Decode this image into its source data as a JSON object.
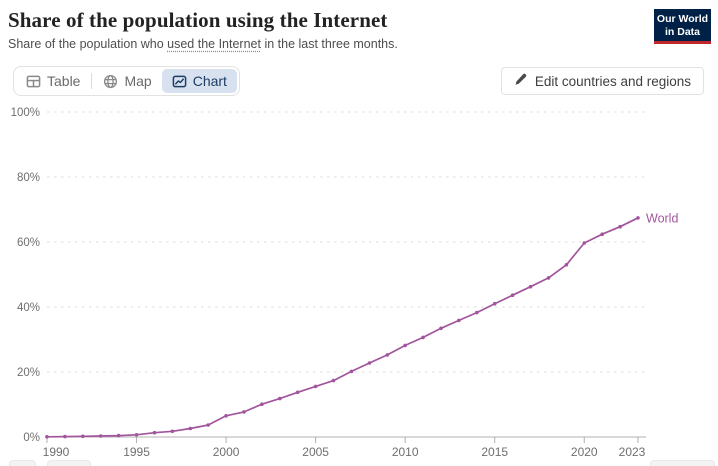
{
  "header": {
    "title": "Share of the population using the Internet",
    "subtitle": {
      "prefix": "Share of the population who ",
      "link": "used the Internet",
      "suffix": " in the last three months."
    },
    "logo": {
      "line1": "Our World",
      "line2": "in Data"
    }
  },
  "toolbar": {
    "tabs": [
      {
        "label": "Table",
        "icon": "table-icon",
        "active": false
      },
      {
        "label": "Map",
        "icon": "globe-icon",
        "active": false
      },
      {
        "label": "Chart",
        "icon": "line-chart-icon",
        "active": true
      }
    ],
    "edit_button": "Edit countries and regions"
  },
  "colors": {
    "line": "#a2559c",
    "tab_active_bg": "#d7e1f0",
    "tab_active_text": "#1d3d63",
    "logo_bg": "#002147",
    "logo_stripe": "#c0272d",
    "gridline": "#dcdcdc",
    "axis_line": "#b0b0b0",
    "tick_label": "#6f6f6f"
  },
  "chart_data": {
    "type": "line",
    "title": "Share of the population using the Internet",
    "subtitle": "Share of the population who used the Internet in the last three months.",
    "xlim": [
      1990,
      2023
    ],
    "ylim": [
      0,
      100
    ],
    "x_ticks": [
      1990,
      1995,
      2000,
      2005,
      2010,
      2015,
      2020,
      2023
    ],
    "y_ticks": [
      0,
      20,
      40,
      60,
      80,
      100
    ],
    "y_tick_suffix": "%",
    "grid": "horizontal-dashed",
    "legend_position": "end-of-line",
    "series": [
      {
        "name": "World",
        "color": "#a2559c",
        "x": [
          1990,
          1991,
          1992,
          1993,
          1994,
          1995,
          1996,
          1997,
          1998,
          1999,
          2000,
          2001,
          2002,
          2003,
          2004,
          2005,
          2006,
          2007,
          2008,
          2009,
          2010,
          2011,
          2012,
          2013,
          2014,
          2015,
          2016,
          2017,
          2018,
          2019,
          2020,
          2021,
          2022,
          2023
        ],
        "values": [
          0.05,
          0.12,
          0.22,
          0.3,
          0.43,
          0.68,
          1.31,
          1.75,
          2.62,
          3.7,
          6.53,
          7.73,
          10.08,
          11.8,
          13.74,
          15.56,
          17.34,
          20.18,
          22.78,
          25.26,
          28.17,
          30.66,
          33.46,
          35.88,
          38.29,
          41.01,
          43.64,
          46.26,
          48.96,
          53.0,
          59.7,
          62.4,
          64.7,
          67.4
        ]
      }
    ]
  }
}
